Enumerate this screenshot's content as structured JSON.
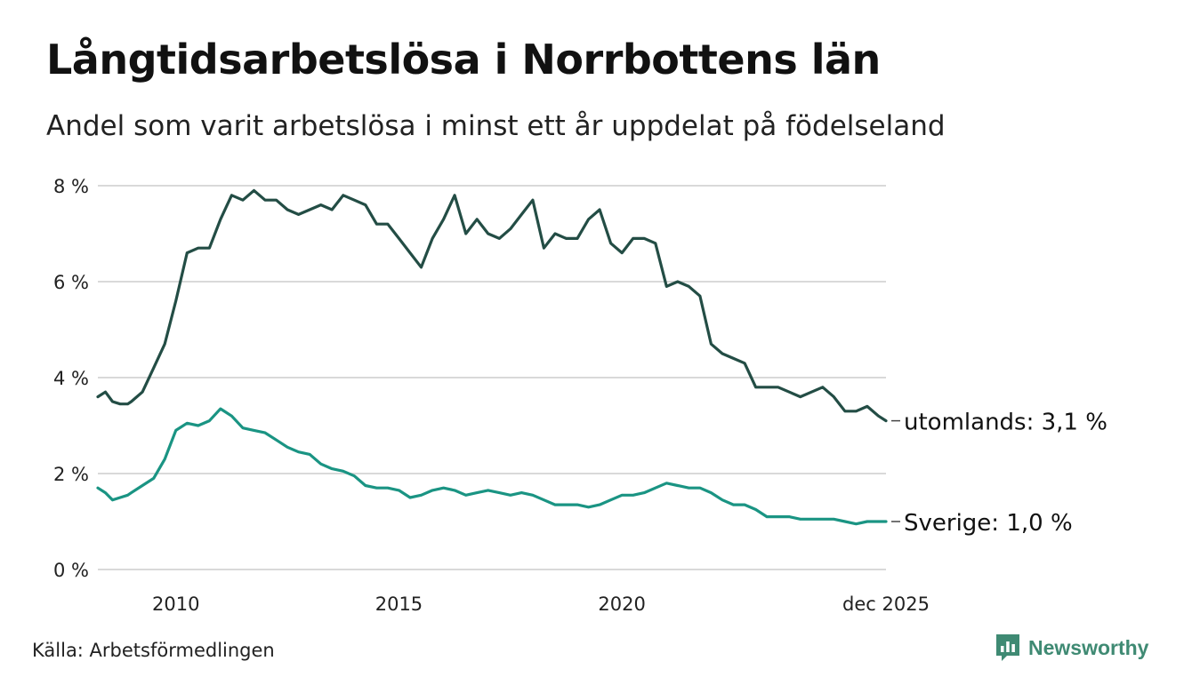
{
  "title": "Långtidsarbetslösa i Norrbottens län",
  "subtitle": "Andel som varit arbetslösa i minst ett år uppdelat på födelseland",
  "source": "Källa: Arbetsförmedlingen",
  "brand": "Newsworthy",
  "colors": {
    "utomlands": "#234d45",
    "sverige": "#1a9483",
    "grid": "#d9d9d9",
    "brand": "#3f8a73"
  },
  "chart_data": {
    "type": "line",
    "title": "Långtidsarbetslösa i Norrbottens län",
    "xlabel": "",
    "ylabel": "",
    "xlim": [
      2008.25,
      2025.92
    ],
    "ylim": [
      0,
      8
    ],
    "grid": true,
    "y_ticks": [
      {
        "value": 0,
        "label": "0 %"
      },
      {
        "value": 2,
        "label": "2 %"
      },
      {
        "value": 4,
        "label": "4 %"
      },
      {
        "value": 6,
        "label": "6 %"
      },
      {
        "value": 8,
        "label": "8 %"
      }
    ],
    "x_ticks": [
      {
        "value": 2010,
        "label": "2010"
      },
      {
        "value": 2015,
        "label": "2015"
      },
      {
        "value": 2020,
        "label": "2020"
      },
      {
        "value": 2025.92,
        "label": "dec 2025"
      }
    ],
    "series": [
      {
        "name": "utomlands",
        "end_label": "utomlands: 3,1 %",
        "x": [
          2008.25,
          2008.42,
          2008.58,
          2008.75,
          2008.92,
          2009.0,
          2009.25,
          2009.5,
          2009.75,
          2010.0,
          2010.25,
          2010.5,
          2010.75,
          2011.0,
          2011.25,
          2011.5,
          2011.75,
          2012.0,
          2012.25,
          2012.5,
          2012.75,
          2013.0,
          2013.25,
          2013.5,
          2013.75,
          2014.0,
          2014.25,
          2014.5,
          2014.75,
          2015.0,
          2015.25,
          2015.5,
          2015.75,
          2016.0,
          2016.25,
          2016.5,
          2016.75,
          2017.0,
          2017.25,
          2017.5,
          2017.75,
          2018.0,
          2018.25,
          2018.5,
          2018.75,
          2019.0,
          2019.25,
          2019.5,
          2019.75,
          2020.0,
          2020.25,
          2020.5,
          2020.75,
          2021.0,
          2021.25,
          2021.5,
          2021.75,
          2022.0,
          2022.25,
          2022.5,
          2022.75,
          2023.0,
          2023.25,
          2023.5,
          2023.75,
          2024.0,
          2024.25,
          2024.5,
          2024.75,
          2025.0,
          2025.25,
          2025.5,
          2025.75,
          2025.92
        ],
        "values": [
          3.6,
          3.7,
          3.5,
          3.45,
          3.45,
          3.5,
          3.7,
          4.2,
          4.7,
          5.6,
          6.6,
          6.7,
          6.7,
          7.3,
          7.8,
          7.7,
          7.9,
          7.7,
          7.7,
          7.5,
          7.4,
          7.5,
          7.6,
          7.5,
          7.8,
          7.7,
          7.6,
          7.2,
          7.2,
          6.9,
          6.6,
          6.3,
          6.9,
          7.3,
          7.8,
          7.0,
          7.3,
          7.0,
          6.9,
          7.1,
          7.4,
          7.7,
          6.7,
          7.0,
          6.9,
          6.9,
          7.3,
          7.5,
          6.8,
          6.6,
          6.9,
          6.9,
          6.8,
          5.9,
          6.0,
          5.9,
          5.7,
          4.7,
          4.5,
          4.4,
          4.3,
          3.8,
          3.8,
          3.8,
          3.7,
          3.6,
          3.7,
          3.8,
          3.6,
          3.3,
          3.3,
          3.4,
          3.2,
          3.1
        ]
      },
      {
        "name": "Sverige",
        "end_label": "Sverige: 1,0 %",
        "x": [
          2008.25,
          2008.42,
          2008.58,
          2008.75,
          2008.92,
          2009.0,
          2009.25,
          2009.5,
          2009.75,
          2010.0,
          2010.25,
          2010.5,
          2010.75,
          2011.0,
          2011.25,
          2011.5,
          2011.75,
          2012.0,
          2012.25,
          2012.5,
          2012.75,
          2013.0,
          2013.25,
          2013.5,
          2013.75,
          2014.0,
          2014.25,
          2014.5,
          2014.75,
          2015.0,
          2015.25,
          2015.5,
          2015.75,
          2016.0,
          2016.25,
          2016.5,
          2016.75,
          2017.0,
          2017.25,
          2017.5,
          2017.75,
          2018.0,
          2018.25,
          2018.5,
          2018.75,
          2019.0,
          2019.25,
          2019.5,
          2019.75,
          2020.0,
          2020.25,
          2020.5,
          2020.75,
          2021.0,
          2021.25,
          2021.5,
          2021.75,
          2022.0,
          2022.25,
          2022.5,
          2022.75,
          2023.0,
          2023.25,
          2023.5,
          2023.75,
          2024.0,
          2024.25,
          2024.5,
          2024.75,
          2025.0,
          2025.25,
          2025.5,
          2025.75,
          2025.92
        ],
        "values": [
          1.7,
          1.6,
          1.45,
          1.5,
          1.55,
          1.6,
          1.75,
          1.9,
          2.3,
          2.9,
          3.05,
          3.0,
          3.1,
          3.35,
          3.2,
          2.95,
          2.9,
          2.85,
          2.7,
          2.55,
          2.45,
          2.4,
          2.2,
          2.1,
          2.05,
          1.95,
          1.75,
          1.7,
          1.7,
          1.65,
          1.5,
          1.55,
          1.65,
          1.7,
          1.65,
          1.55,
          1.6,
          1.65,
          1.6,
          1.55,
          1.6,
          1.55,
          1.45,
          1.35,
          1.35,
          1.35,
          1.3,
          1.35,
          1.45,
          1.55,
          1.55,
          1.6,
          1.7,
          1.8,
          1.75,
          1.7,
          1.7,
          1.6,
          1.45,
          1.35,
          1.35,
          1.25,
          1.1,
          1.1,
          1.1,
          1.05,
          1.05,
          1.05,
          1.05,
          1.0,
          0.95,
          1.0,
          1.0,
          1.0
        ]
      }
    ]
  }
}
